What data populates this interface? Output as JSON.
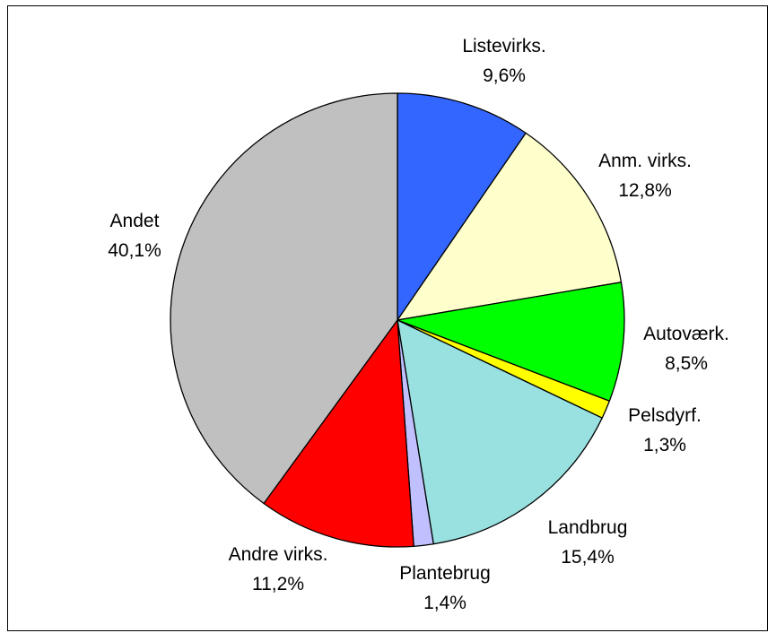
{
  "chart_data": {
    "type": "pie",
    "title": "",
    "start": "top-clockwise",
    "slices": [
      {
        "label": "Listevirks.",
        "value": 9.6,
        "value_label": "9,6%",
        "color": "#3366ff"
      },
      {
        "label": "Anm. virks.",
        "value": 12.8,
        "value_label": "12,8%",
        "color": "#ffffcc"
      },
      {
        "label": "Autoværk.",
        "value": 8.5,
        "value_label": "8,5%",
        "color": "#00ff00"
      },
      {
        "label": "Pelsdyrf.",
        "value": 1.3,
        "value_label": "1,3%",
        "color": "#ffff00"
      },
      {
        "label": "Landbrug",
        "value": 15.4,
        "value_label": "15,4%",
        "color": "#99e1e1"
      },
      {
        "label": "Plantebrug",
        "value": 1.4,
        "value_label": "1,4%",
        "color": "#c0c0ff"
      },
      {
        "label": "Andre virks.",
        "value": 11.2,
        "value_label": "11,2%",
        "color": "#ff0000"
      },
      {
        "label": "Andet",
        "value": 40.1,
        "value_label": "40,1%",
        "color": "#c0c0c0"
      }
    ]
  }
}
